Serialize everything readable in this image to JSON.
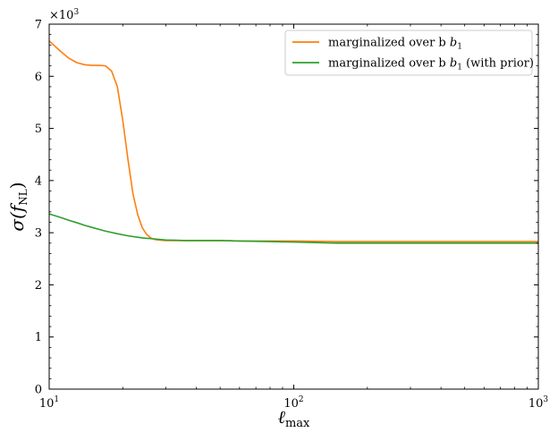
{
  "chart_data": {
    "type": "line",
    "title": "",
    "xlabel": "ℓ",
    "xlabel_sub": "max",
    "ylabel": "σ(f",
    "ylabel_sub": "NL",
    "ylabel_close": ")",
    "y_multiplier": "×10",
    "y_multiplier_exp": "3",
    "xscale": "log",
    "xlim": [
      10,
      1000
    ],
    "ylim": [
      0,
      7
    ],
    "xticks": [
      {
        "value": 10,
        "base": "10",
        "exp": "1"
      },
      {
        "value": 100,
        "base": "10",
        "exp": "2"
      },
      {
        "value": 1000,
        "base": "10",
        "exp": "3"
      }
    ],
    "yticks": [
      {
        "value": 0,
        "label": "0"
      },
      {
        "value": 1,
        "label": "1"
      },
      {
        "value": 2,
        "label": "2"
      },
      {
        "value": 3,
        "label": "3"
      },
      {
        "value": 4,
        "label": "4"
      },
      {
        "value": 5,
        "label": "5"
      },
      {
        "value": 6,
        "label": "6"
      },
      {
        "value": 7,
        "label": "7"
      }
    ],
    "grid": false,
    "legend_position": "top-right",
    "series": [
      {
        "name": "marginalized over b",
        "name_sub": "1",
        "name_suffix": "",
        "color": "#ff7f0e",
        "x": [
          10,
          11,
          12,
          13,
          14,
          15,
          16,
          17,
          18,
          19,
          20,
          21,
          22,
          23,
          24,
          25,
          26,
          27,
          28,
          30,
          32,
          35,
          40,
          50,
          60,
          80,
          100,
          150,
          200,
          300,
          500,
          700,
          1000
        ],
        "y": [
          6.68,
          6.5,
          6.35,
          6.26,
          6.22,
          6.21,
          6.21,
          6.2,
          6.1,
          5.8,
          5.15,
          4.4,
          3.75,
          3.35,
          3.1,
          2.97,
          2.9,
          2.87,
          2.86,
          2.85,
          2.85,
          2.85,
          2.85,
          2.85,
          2.84,
          2.84,
          2.84,
          2.83,
          2.83,
          2.83,
          2.83,
          2.83,
          2.83
        ]
      },
      {
        "name": "marginalized over b",
        "name_sub": "1",
        "name_suffix": " (with prior)",
        "color": "#2ca02c",
        "x": [
          10,
          11,
          12,
          13,
          14,
          15,
          17,
          19,
          21,
          24,
          27,
          30,
          33,
          36,
          40,
          50,
          60,
          80,
          100,
          150,
          200,
          300,
          500,
          700,
          1000
        ],
        "y": [
          3.36,
          3.3,
          3.24,
          3.19,
          3.14,
          3.1,
          3.03,
          2.98,
          2.94,
          2.9,
          2.88,
          2.86,
          2.855,
          2.85,
          2.85,
          2.85,
          2.84,
          2.83,
          2.82,
          2.8,
          2.8,
          2.8,
          2.8,
          2.8,
          2.8
        ]
      }
    ]
  }
}
